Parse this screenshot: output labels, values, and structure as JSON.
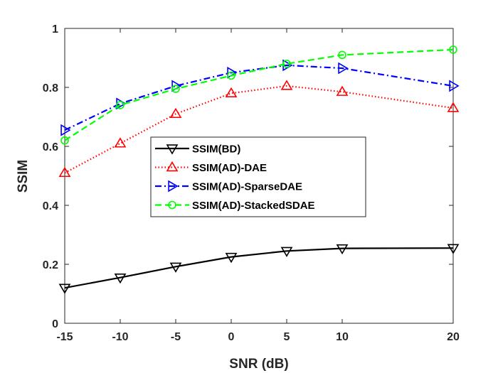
{
  "chart_data": {
    "type": "line",
    "title": "",
    "xlabel": "SNR (dB)",
    "ylabel": "SSIM",
    "x": [
      -15,
      -10,
      -5,
      0,
      5,
      10,
      20
    ],
    "xlim": [
      -15,
      20
    ],
    "ylim": [
      0,
      1
    ],
    "xticks": [
      -15,
      -10,
      -5,
      0,
      5,
      10,
      20
    ],
    "xtick_labels": [
      "-15",
      "-10",
      "-5",
      "0",
      "5",
      "10",
      "20"
    ],
    "yticks": [
      0,
      0.2,
      0.4,
      0.6,
      0.8,
      1
    ],
    "ytick_labels": [
      "0",
      "0.2",
      "0.4",
      "0.6",
      "0.8",
      "1"
    ],
    "grid": false,
    "legend_position": "center",
    "series": [
      {
        "name": "SSIM(BD)",
        "color": "#000000",
        "dash": "solid",
        "marker": "triangle-down",
        "values": [
          0.12,
          0.155,
          0.192,
          0.225,
          0.245,
          0.254,
          0.255
        ]
      },
      {
        "name": "SSIM(AD)-DAE",
        "color": "#ff0000",
        "dash": "dotted",
        "marker": "triangle-up",
        "values": [
          0.51,
          0.61,
          0.71,
          0.78,
          0.805,
          0.785,
          0.73
        ]
      },
      {
        "name": "SSIM(AD)-SparseDAE",
        "color": "#0000ff",
        "dash": "dashdot",
        "marker": "triangle-right",
        "values": [
          0.655,
          0.745,
          0.805,
          0.85,
          0.875,
          0.865,
          0.805
        ]
      },
      {
        "name": "SSIM(AD)-StackedSDAE",
        "color": "#00ff00",
        "dash": "dashed",
        "marker": "circle",
        "values": [
          0.62,
          0.74,
          0.795,
          0.84,
          0.88,
          0.91,
          0.928
        ]
      }
    ]
  }
}
